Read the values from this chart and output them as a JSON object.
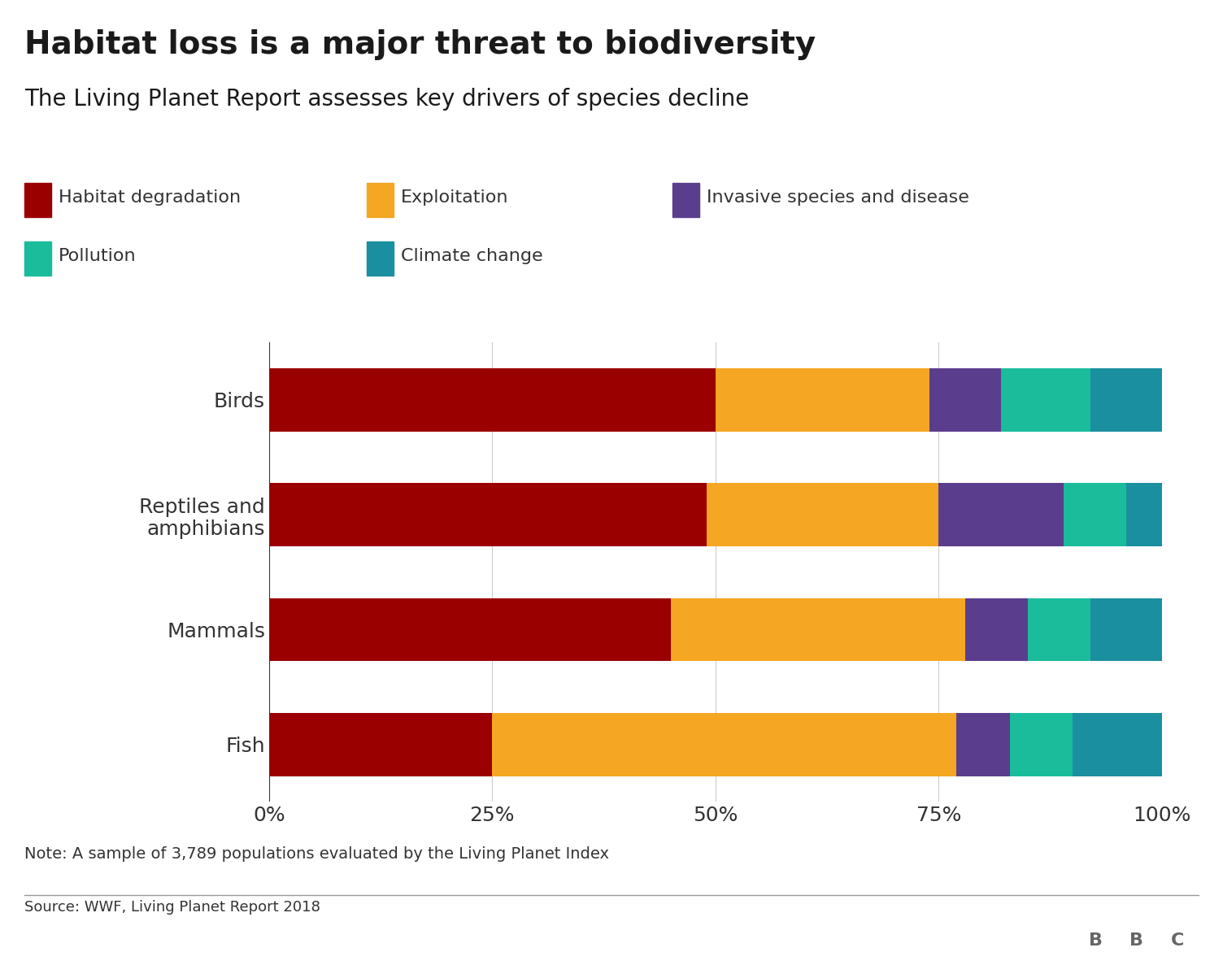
{
  "title": "Habitat loss is a major threat to biodiversity",
  "subtitle": "The Living Planet Report assesses key drivers of species decline",
  "note": "Note: A sample of 3,789 populations evaluated by the Living Planet Index",
  "source": "Source: WWF, Living Planet Report 2018",
  "categories": [
    "Birds",
    "Reptiles and\namphibians",
    "Mammals",
    "Fish"
  ],
  "segments": [
    "Habitat degradation",
    "Exploitation",
    "Invasive species and disease",
    "Pollution",
    "Climate change"
  ],
  "colors": [
    "#9b0000",
    "#f5a623",
    "#5b3d8e",
    "#1abc9c",
    "#1a8fa0"
  ],
  "data": {
    "Birds": [
      0.5,
      0.24,
      0.08,
      0.1,
      0.08
    ],
    "Reptiles and\namphibians": [
      0.49,
      0.26,
      0.14,
      0.07,
      0.04
    ],
    "Mammals": [
      0.45,
      0.33,
      0.07,
      0.07,
      0.08
    ],
    "Fish": [
      0.25,
      0.52,
      0.06,
      0.07,
      0.1
    ]
  },
  "background_color": "#ffffff",
  "title_fontsize": 28,
  "subtitle_fontsize": 20,
  "label_fontsize": 18,
  "legend_fontsize": 16,
  "note_fontsize": 14,
  "source_fontsize": 13,
  "bar_height": 0.55,
  "xlim": [
    0,
    1.0
  ]
}
